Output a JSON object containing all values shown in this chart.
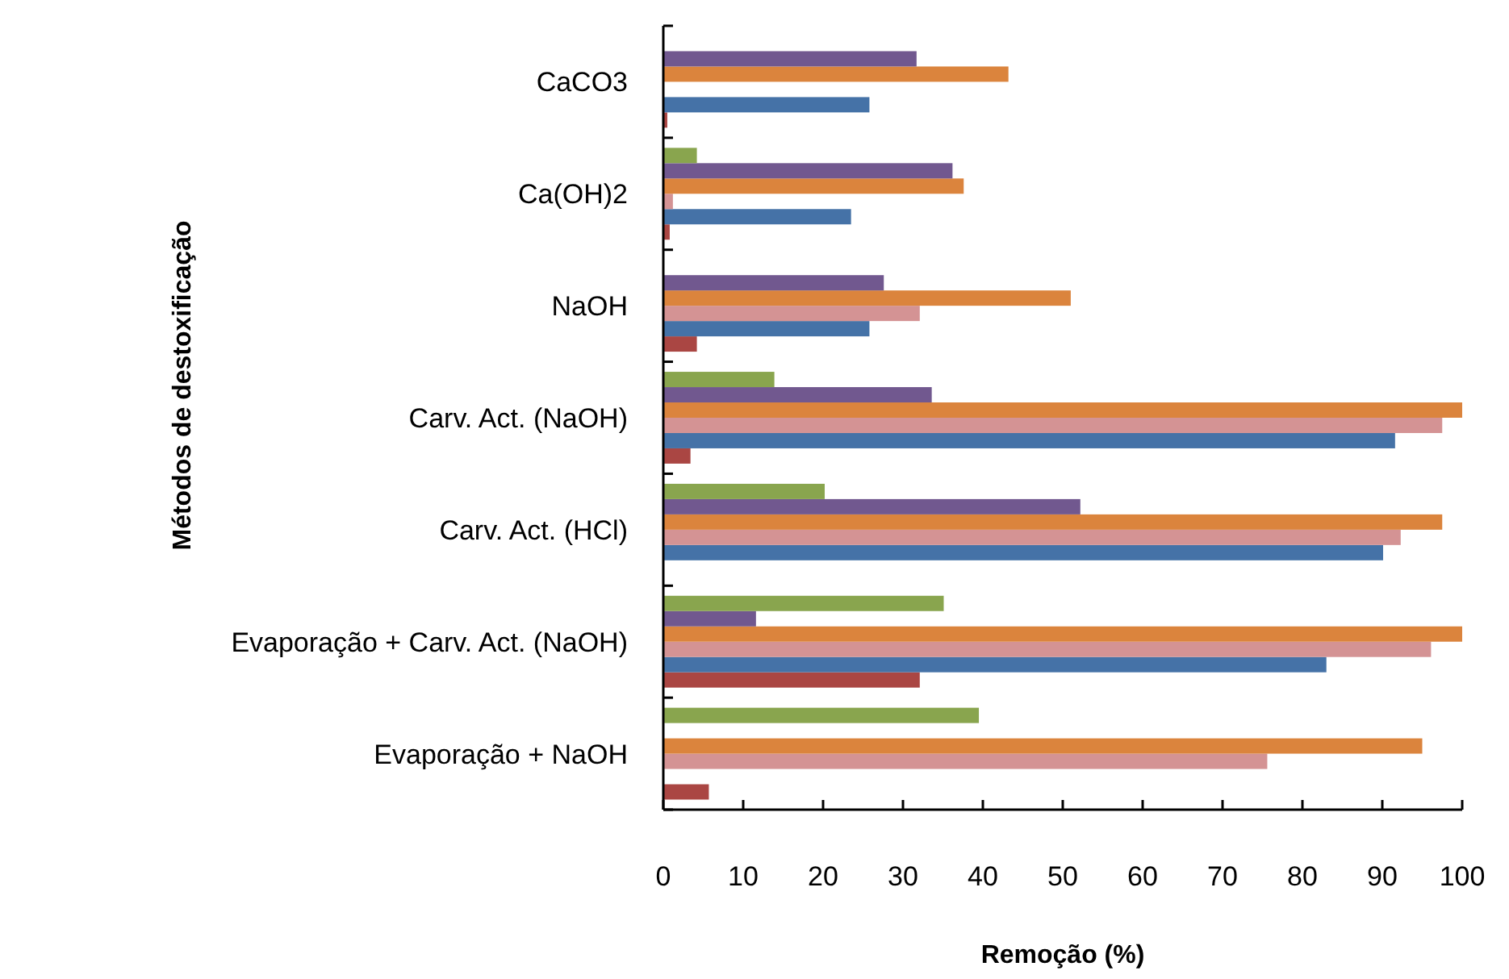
{
  "chart_data": {
    "type": "bar",
    "orientation": "horizontal",
    "xlabel": "Remoção (%)",
    "ylabel": "Métodos de destoxificação",
    "categories": [
      "CaCO3",
      "Ca(OH)2",
      "NaOH",
      "Carv. Act. (NaOH)",
      "Carv. Act. (HCl)",
      "Evaporação + Carv. Act. (NaOH)",
      "Evaporação + NaOH"
    ],
    "series": [
      {
        "color": "#aa4643",
        "values": [
          0.5,
          0.8,
          4.2,
          3.4,
          0,
          32.1,
          5.7
        ]
      },
      {
        "color": "#4572a7",
        "values": [
          25.8,
          23.5,
          25.8,
          91.6,
          90.1,
          83.0,
          0
        ]
      },
      {
        "color": "#d49394",
        "values": [
          0,
          1.2,
          32.1,
          97.5,
          92.3,
          96.1,
          75.6
        ]
      },
      {
        "color": "#db843d",
        "values": [
          43.2,
          37.6,
          51.0,
          100,
          97.5,
          100,
          95.0
        ]
      },
      {
        "color": "#71588f",
        "values": [
          31.7,
          36.2,
          27.6,
          33.6,
          52.2,
          11.6,
          0
        ]
      },
      {
        "color": "#89a54e",
        "values": [
          null,
          4.2,
          null,
          13.9,
          20.2,
          35.1,
          39.5
        ]
      }
    ],
    "xlim": [
      0,
      100
    ],
    "xticks": [
      0,
      10,
      20,
      30,
      40,
      50,
      60,
      70,
      80,
      90,
      100
    ],
    "grid": false
  }
}
